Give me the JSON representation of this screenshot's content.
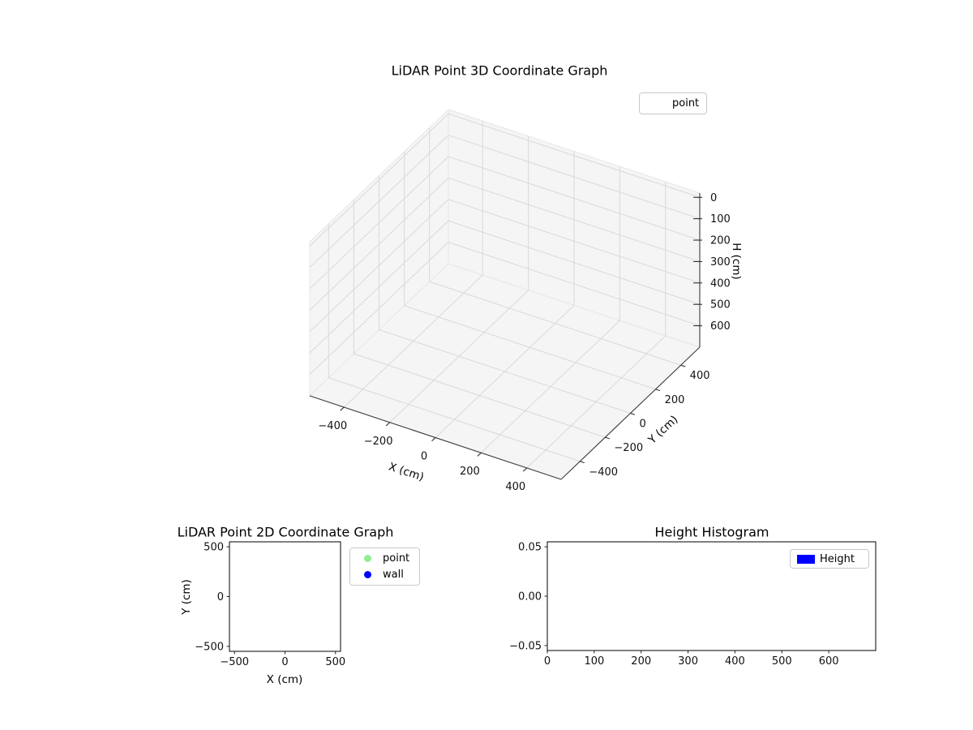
{
  "window": {
    "background": "#ffffff"
  },
  "chart_data": [
    {
      "id": "lidar_3d",
      "type": "scatter3d",
      "title": "LiDAR Point 3D Coordinate Graph",
      "xlabel": "X (cm)",
      "ylabel": "Y (cm)",
      "zlabel": "H (cm)",
      "xlim": [
        -550,
        550
      ],
      "ylim": [
        -550,
        550
      ],
      "zlim": [
        -20,
        700
      ],
      "z_axis_inverted": true,
      "xticks": [
        -400,
        -200,
        0,
        200,
        400
      ],
      "xtick_labels": [
        "−400",
        "−200",
        "0",
        "200",
        "400"
      ],
      "yticks": [
        -400,
        -200,
        0,
        200,
        400
      ],
      "ytick_labels": [
        "−400",
        "−200",
        "0",
        "200",
        "400"
      ],
      "zticks": [
        0,
        100,
        200,
        300,
        400,
        500,
        600
      ],
      "ztick_labels": [
        "0",
        "100",
        "200",
        "300",
        "400",
        "500",
        "600"
      ],
      "grid": true,
      "pane_color": "#f5f5f5",
      "grid_color": "#d9d9d9",
      "legend": {
        "position": "upper right",
        "entries": [
          {
            "label": "point",
            "marker": "none"
          }
        ]
      },
      "points": []
    },
    {
      "id": "lidar_2d",
      "type": "scatter",
      "title": "LiDAR Point 2D Coordinate Graph",
      "xlabel": "X (cm)",
      "ylabel": "Y (cm)",
      "xlim": [
        -550,
        550
      ],
      "ylim": [
        -550,
        550
      ],
      "xticks": [
        -500,
        0,
        500
      ],
      "xtick_labels": [
        "−500",
        "0",
        "500"
      ],
      "yticks": [
        500,
        0,
        -500
      ],
      "ytick_labels": [
        "500",
        "0",
        "−500"
      ],
      "grid": false,
      "legend": {
        "position": "outside upper right",
        "entries": [
          {
            "label": "point",
            "marker": "circle",
            "color": "#90ee90"
          },
          {
            "label": "wall",
            "marker": "circle",
            "color": "#0000ff"
          }
        ]
      },
      "points": []
    },
    {
      "id": "height_histogram",
      "type": "bar",
      "title": "Height Histogram",
      "xlabel": "",
      "ylabel": "",
      "xlim": [
        0,
        700
      ],
      "ylim": [
        -0.055,
        0.055
      ],
      "xticks": [
        0,
        100,
        200,
        300,
        400,
        500,
        600
      ],
      "xtick_labels": [
        "0",
        "100",
        "200",
        "300",
        "400",
        "500",
        "600"
      ],
      "yticks": [
        0.05,
        0,
        -0.05
      ],
      "ytick_labels": [
        "0.05",
        "0.00",
        "−0.05"
      ],
      "grid": false,
      "legend": {
        "position": "upper right",
        "entries": [
          {
            "label": "Height",
            "marker": "rect",
            "color": "#0000ff"
          }
        ]
      },
      "values": []
    }
  ]
}
